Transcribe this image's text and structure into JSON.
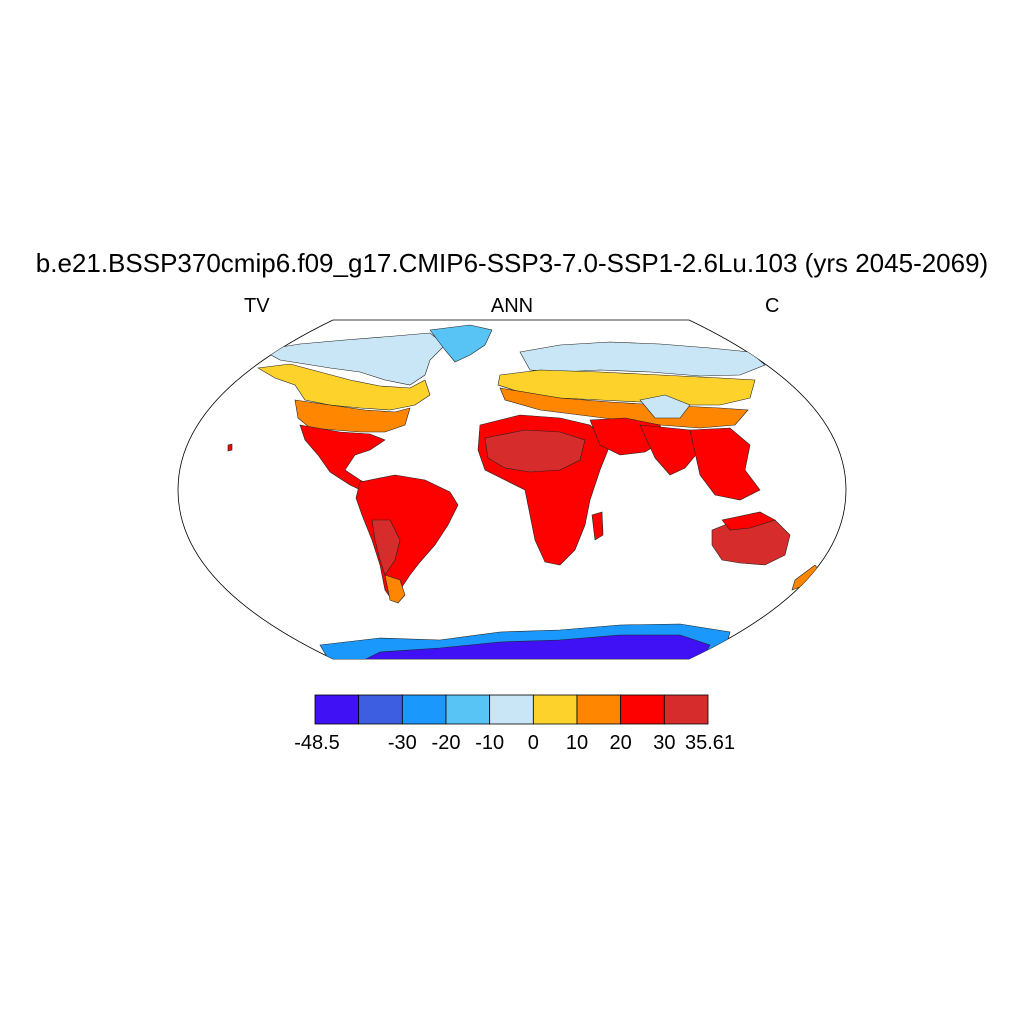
{
  "title": "b.e21.BSSP370cmip6.f09_g17.CMIP6-SSP3-7.0-SSP1-2.6Lu.103 (yrs 2045-2069)",
  "subtitle_left": "TV",
  "subtitle_center": "ANN",
  "subtitle_right": "C",
  "colorbar": {
    "colors": [
      "#4011f5",
      "#3e5ee2",
      "#1a98fc",
      "#57c4f5",
      "#c8e6f6",
      "#fdd22b",
      "#fe8600",
      "#fd0000",
      "#d72c2c"
    ],
    "labels": [
      "-48.5",
      "-30",
      "-20",
      "-10",
      "0",
      "10",
      "20",
      "30",
      "35.61"
    ],
    "label_positions": [
      -48.5,
      -30,
      -20,
      -10,
      0,
      10,
      20,
      30,
      35.61
    ]
  }
}
